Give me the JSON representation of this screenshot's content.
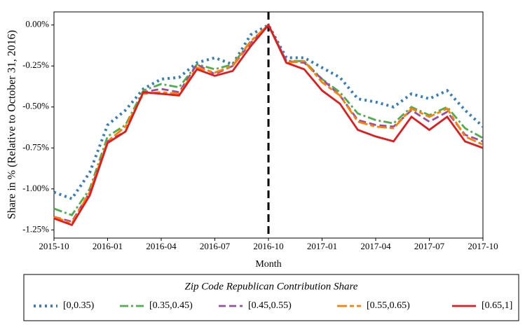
{
  "chart_data": {
    "type": "line",
    "x_label": "Month",
    "y_label": "Share in % (Relative to October 31, 2016)",
    "x": [
      "2015-10",
      "2015-11",
      "2015-12",
      "2016-01",
      "2016-02",
      "2016-03",
      "2016-04",
      "2016-05",
      "2016-06",
      "2016-07",
      "2016-08",
      "2016-09",
      "2016-10",
      "2016-11",
      "2016-12",
      "2017-01",
      "2017-02",
      "2017-03",
      "2017-04",
      "2017-05",
      "2017-06",
      "2017-07",
      "2017-08",
      "2017-09",
      "2017-10"
    ],
    "xlim": [
      "2015-10",
      "2017-10"
    ],
    "xticks": [
      "2015-10",
      "2016-01",
      "2016-04",
      "2016-07",
      "2016-10",
      "2017-01",
      "2017-04",
      "2017-07",
      "2017-10"
    ],
    "ylim": [
      -1.3,
      0.08
    ],
    "yticks": [
      {
        "value": 0,
        "label": "0.00%"
      },
      {
        "value": -0.25,
        "label": "-0.25%"
      },
      {
        "value": -0.5,
        "label": "-0.50%"
      },
      {
        "value": -0.75,
        "label": "-0.75%"
      },
      {
        "value": -1,
        "label": "-1.00%"
      },
      {
        "value": -1.25,
        "label": "-1.25%"
      }
    ],
    "vline": "2016-10",
    "legend_title": "Zip Code Republican Contribution Share",
    "legend_position": "bottom",
    "series": [
      {
        "name": "[0,0.35)",
        "color": "#377eb8",
        "dash": "dotted",
        "values": [
          -1.02,
          -1.06,
          -0.9,
          -0.61,
          -0.52,
          -0.39,
          -0.33,
          -0.32,
          -0.23,
          -0.2,
          -0.24,
          -0.06,
          0.0,
          -0.2,
          -0.2,
          -0.26,
          -0.32,
          -0.45,
          -0.47,
          -0.5,
          -0.42,
          -0.45,
          -0.4,
          -0.52,
          -0.62
        ]
      },
      {
        "name": "[0.35,0.45)",
        "color": "#4daf4a",
        "dash": "dashdot",
        "values": [
          -1.12,
          -1.16,
          -1.0,
          -0.68,
          -0.61,
          -0.4,
          -0.36,
          -0.38,
          -0.24,
          -0.27,
          -0.24,
          -0.1,
          0.0,
          -0.22,
          -0.22,
          -0.33,
          -0.41,
          -0.54,
          -0.58,
          -0.6,
          -0.5,
          -0.55,
          -0.5,
          -0.63,
          -0.69
        ]
      },
      {
        "name": "[0.45,0.55)",
        "color": "#984ea3",
        "dash": "dashed",
        "values": [
          -1.17,
          -1.2,
          -1.02,
          -0.71,
          -0.65,
          -0.41,
          -0.39,
          -0.41,
          -0.24,
          -0.3,
          -0.25,
          -0.11,
          0.0,
          -0.22,
          -0.23,
          -0.33,
          -0.43,
          -0.58,
          -0.61,
          -0.62,
          -0.52,
          -0.59,
          -0.53,
          -0.67,
          -0.71
        ]
      },
      {
        "name": "[0.55,0.65)",
        "color": "#ff7f00",
        "dash": "longdashdot",
        "values": [
          -1.17,
          -1.21,
          -1.02,
          -0.71,
          -0.62,
          -0.42,
          -0.41,
          -0.42,
          -0.26,
          -0.29,
          -0.25,
          -0.1,
          0.0,
          -0.23,
          -0.22,
          -0.35,
          -0.43,
          -0.59,
          -0.62,
          -0.63,
          -0.51,
          -0.56,
          -0.51,
          -0.68,
          -0.73
        ]
      },
      {
        "name": "[0.65,1]",
        "color": "#e41a1c",
        "dash": "solid",
        "values": [
          -1.18,
          -1.22,
          -1.04,
          -0.72,
          -0.65,
          -0.41,
          -0.42,
          -0.43,
          -0.27,
          -0.31,
          -0.28,
          -0.13,
          0.0,
          -0.23,
          -0.27,
          -0.4,
          -0.48,
          -0.64,
          -0.68,
          -0.71,
          -0.56,
          -0.64,
          -0.56,
          -0.71,
          -0.75
        ]
      }
    ]
  }
}
